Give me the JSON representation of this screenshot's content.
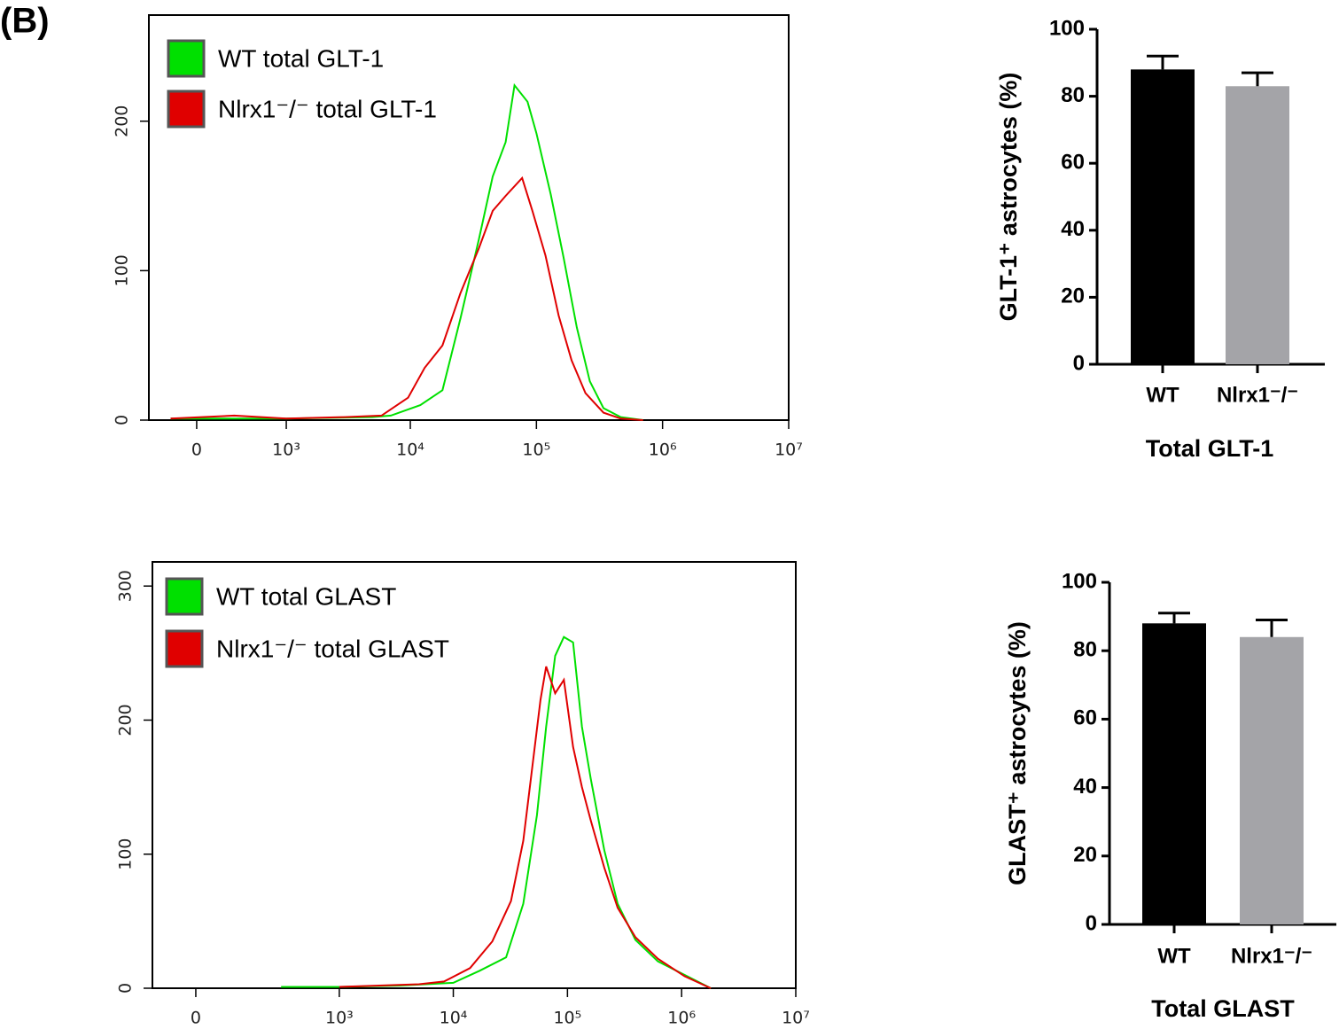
{
  "panel_label": "(B)",
  "chart_data": [
    {
      "type": "line",
      "xscale": "biexponential",
      "xlim": [
        -400,
        10000000
      ],
      "ylim": [
        0,
        271
      ],
      "xticks": [
        0,
        {
          "value": 1000,
          "label": "10³"
        },
        {
          "value": 10000,
          "label": "10⁴"
        },
        {
          "value": 100000,
          "label": "10⁵"
        },
        {
          "value": 1000000,
          "label": "10⁶"
        },
        {
          "value": 10000000,
          "label": "10⁷"
        }
      ],
      "yticks": [
        0,
        100,
        200
      ],
      "legend": "upper left",
      "series": [
        {
          "name": "WT total GLT-1",
          "color": "#00e000",
          "x": [
            -200,
            1000,
            5000,
            7000,
            12000,
            18000,
            25000,
            35000,
            45000,
            57000,
            67000,
            85000,
            100000,
            130000,
            164000,
            209000,
            265000,
            340000,
            466000,
            700000
          ],
          "values": [
            1,
            1,
            2,
            3,
            10,
            20,
            68,
            121,
            163,
            186,
            224,
            213,
            192,
            151,
            109,
            62,
            26,
            8,
            2,
            0
          ]
        },
        {
          "name": "Nlrx1⁻/⁻ total GLT-1",
          "color": "#e00000",
          "x": [
            -200,
            300,
            1000,
            3000,
            5900,
            9600,
            13000,
            18000,
            25000,
            35000,
            45000,
            57000,
            77000,
            93000,
            118000,
            150000,
            190000,
            245000,
            340000,
            466000,
            700000
          ],
          "values": [
            1,
            3,
            1,
            2,
            3,
            15,
            35,
            50,
            85,
            115,
            140,
            150,
            162,
            140,
            110,
            70,
            40,
            18,
            5,
            1,
            0
          ]
        }
      ]
    },
    {
      "type": "bar",
      "categories": [
        "WT",
        "Nlrx1⁻/⁻"
      ],
      "values": [
        88,
        83
      ],
      "errors": [
        4,
        4
      ],
      "colors": [
        "#000000",
        "#a4a4a8"
      ],
      "ylabel": "GLT-1⁺ astrocytes (%)",
      "xlabel": "Total GLT-1",
      "ylim": [
        0,
        100
      ],
      "yticks": [
        0,
        20,
        40,
        60,
        80,
        100
      ]
    },
    {
      "type": "line",
      "xscale": "biexponential",
      "xlim": [
        -110,
        10000000
      ],
      "ylim": [
        0,
        318
      ],
      "xticks": [
        0,
        {
          "value": 1000,
          "label": "10³"
        },
        {
          "value": 10000,
          "label": "10⁴"
        },
        {
          "value": 100000,
          "label": "10⁵"
        },
        {
          "value": 1000000,
          "label": "10⁶"
        },
        {
          "value": 10000000,
          "label": "10⁷"
        }
      ],
      "yticks": [
        0,
        100,
        200,
        300
      ],
      "legend": "upper left",
      "series": [
        {
          "name": "WT total GLAST",
          "color": "#00e000",
          "x": [
            300,
            1000,
            3400,
            10000,
            17000,
            29000,
            41000,
            54000,
            65000,
            78000,
            93000,
            112000,
            134000,
            160000,
            210000,
            275000,
            394000,
            620000,
            1060000,
            1800000
          ],
          "values": [
            1,
            1,
            2,
            4,
            13,
            23,
            63,
            129,
            195,
            248,
            262,
            258,
            195,
            156,
            103,
            63,
            36,
            20,
            10,
            0
          ]
        },
        {
          "name": "Nlrx1⁻/⁻ total GLAST",
          "color": "#e00000",
          "x": [
            1000,
            5000,
            8300,
            14000,
            22000,
            32000,
            41000,
            50000,
            58000,
            65000,
            78000,
            93000,
            112000,
            134000,
            160000,
            210000,
            275000,
            394000,
            620000,
            1060000,
            1800000
          ],
          "values": [
            1,
            3,
            5,
            15,
            35,
            65,
            110,
            170,
            215,
            240,
            220,
            230,
            180,
            150,
            125,
            90,
            60,
            38,
            22,
            9,
            0
          ]
        }
      ]
    },
    {
      "type": "bar",
      "categories": [
        "WT",
        "Nlrx1⁻/⁻"
      ],
      "values": [
        88,
        84
      ],
      "errors": [
        3,
        5
      ],
      "colors": [
        "#000000",
        "#a4a4a8"
      ],
      "ylabel": "GLAST⁺ astrocytes (%)",
      "xlabel": "Total GLAST",
      "ylim": [
        0,
        100
      ],
      "yticks": [
        0,
        20,
        40,
        60,
        80,
        100
      ]
    }
  ]
}
